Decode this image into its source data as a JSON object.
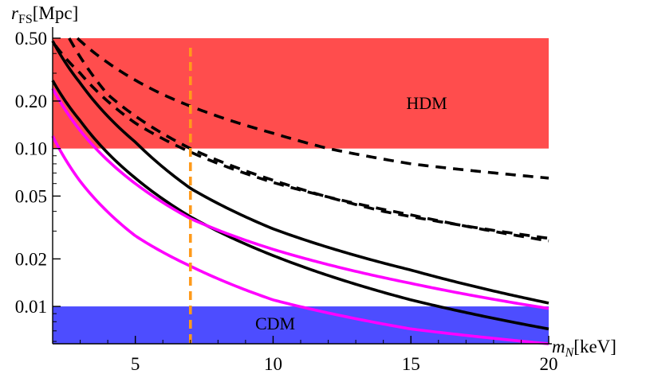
{
  "chart_data": {
    "type": "line",
    "title": "",
    "y_scale": "log",
    "xlim": [
      2,
      20
    ],
    "ylim": [
      0.0058,
      0.5
    ],
    "xlabel": {
      "base": "m",
      "sub": "N",
      "unit": "[keV]"
    },
    "ylabel": {
      "base": "r",
      "sub": "FS",
      "unit": "[Mpc]"
    },
    "x_ticks": [
      5,
      10,
      15,
      20
    ],
    "x_tick_labels": [
      "5",
      "10",
      "15",
      "20"
    ],
    "y_ticks": [
      0.01,
      0.02,
      0.05,
      0.1,
      0.2,
      0.5
    ],
    "y_tick_labels": [
      "0.01",
      "0.02",
      "0.05",
      "0.10",
      "0.20",
      "0.50"
    ],
    "bands": [
      {
        "label": "HDM",
        "y_min": 0.1,
        "y_max": 0.5,
        "color": "#ff4d4d"
      },
      {
        "label": "CDM",
        "y_min": 0.0058,
        "y_max": 0.01,
        "color": "#4d4dff"
      }
    ],
    "vline": {
      "x": 7.0,
      "color": "#ff9a1a",
      "style": "dashed"
    },
    "series": [
      {
        "style": "dashed",
        "color": "#000000",
        "x": [
          2.9,
          4,
          6,
          8,
          10,
          12,
          15,
          20
        ],
        "y": [
          0.5,
          0.35,
          0.22,
          0.16,
          0.125,
          0.1,
          0.08,
          0.065
        ]
      },
      {
        "style": "dashed",
        "color": "#000000",
        "x": [
          2.1,
          3,
          5,
          7,
          10,
          15,
          20
        ],
        "y": [
          0.45,
          0.3,
          0.145,
          0.095,
          0.061,
          0.038,
          0.026
        ]
      },
      {
        "style": "dashed",
        "color": "#000000",
        "x": [
          2.6,
          4,
          7,
          10,
          14,
          20
        ],
        "y": [
          0.5,
          0.22,
          0.1,
          0.063,
          0.04,
          0.027
        ]
      },
      {
        "style": "solid",
        "color": "#000000",
        "x": [
          2,
          3,
          5,
          7,
          10,
          15,
          20
        ],
        "y": [
          0.48,
          0.26,
          0.11,
          0.056,
          0.031,
          0.017,
          0.0105
        ]
      },
      {
        "style": "solid",
        "color": "#000000",
        "x": [
          2,
          3,
          5,
          7,
          10,
          15,
          20
        ],
        "y": [
          0.27,
          0.15,
          0.065,
          0.037,
          0.021,
          0.011,
          0.0072
        ]
      },
      {
        "style": "solid",
        "color": "#ff00ff",
        "x": [
          2,
          3,
          5,
          7,
          10,
          15,
          20
        ],
        "y": [
          0.24,
          0.13,
          0.06,
          0.036,
          0.023,
          0.014,
          0.0097
        ]
      },
      {
        "style": "solid",
        "color": "#ff00ff",
        "x": [
          2,
          3,
          5,
          7,
          10,
          15,
          20
        ],
        "y": [
          0.12,
          0.062,
          0.028,
          0.018,
          0.011,
          0.0072,
          0.0058
        ]
      }
    ]
  }
}
